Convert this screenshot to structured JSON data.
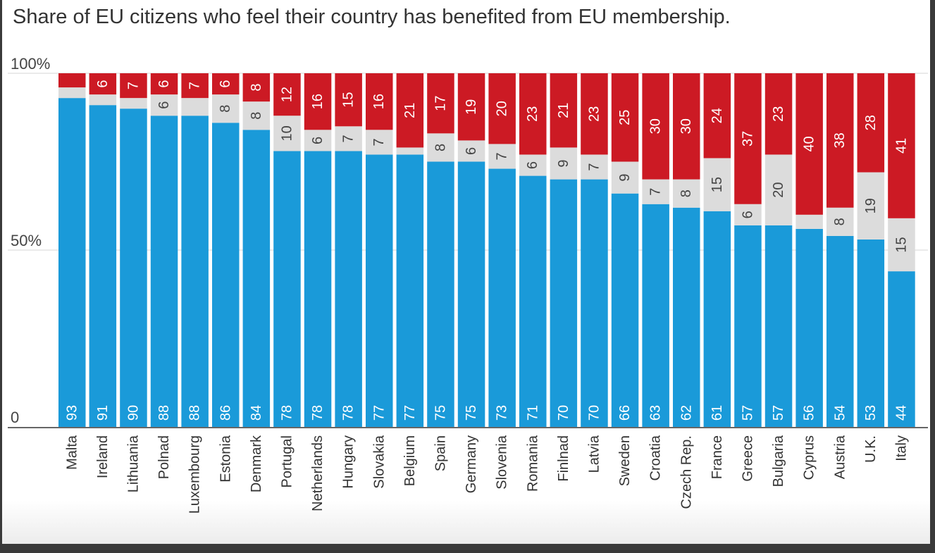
{
  "chart_data": {
    "type": "bar",
    "stacked": true,
    "title": "Share of EU citizens who feel their country has benefited from EU membership.",
    "ylim": [
      0,
      100
    ],
    "yticks": [
      {
        "value": 0,
        "label": "0"
      },
      {
        "value": 50,
        "label": "50%"
      },
      {
        "value": 100,
        "label": "100%"
      }
    ],
    "grid": true,
    "categories": [
      "Malta",
      "Ireland",
      "Lithuania",
      "Polnad",
      "Luxembourg",
      "Estonia",
      "Denmark",
      "Portugal",
      "Netherlands",
      "Hungary",
      "Slovakia",
      "Belgium",
      "Spain",
      "Germany",
      "Slovenia",
      "Romania",
      "Finlnad",
      "Latvia",
      "Sweden",
      "Croatia",
      "Czech Rep.",
      "France",
      "Greece",
      "Bulgaria",
      "Cyprus",
      "Austria",
      "U.K.",
      "Italy"
    ],
    "series": [
      {
        "color": "#1a9ad9",
        "values": [
          93,
          91,
          90,
          88,
          88,
          86,
          84,
          78,
          78,
          78,
          77,
          77,
          75,
          75,
          73,
          71,
          70,
          70,
          66,
          63,
          62,
          61,
          57,
          57,
          56,
          54,
          53,
          44
        ],
        "labels": [
          "93",
          "91",
          "90",
          "88",
          "88",
          "86",
          "84",
          "78",
          "78",
          "78",
          "77",
          "77",
          "75",
          "75",
          "73",
          "71",
          "70",
          "70",
          "66",
          "63",
          "62",
          "61",
          "57",
          "57",
          "56",
          "54",
          "53",
          "44"
        ]
      },
      {
        "color": "#dcdcdc",
        "values": [
          3,
          3,
          3,
          6,
          5,
          8,
          8,
          10,
          6,
          7,
          7,
          2,
          8,
          6,
          7,
          6,
          9,
          7,
          9,
          7,
          8,
          15,
          6,
          20,
          4,
          8,
          19,
          15
        ],
        "labels": [
          "",
          "",
          "",
          "6",
          "",
          "8",
          "8",
          "10",
          "6",
          "7",
          "7",
          "",
          "8",
          "6",
          "7",
          "6",
          "9",
          "7",
          "9",
          "7",
          "8",
          "15",
          "6",
          "20",
          "",
          "8",
          "19",
          "15"
        ]
      },
      {
        "color": "#cc1a24",
        "values": [
          4,
          6,
          7,
          6,
          7,
          6,
          8,
          12,
          16,
          15,
          16,
          21,
          17,
          19,
          20,
          23,
          21,
          23,
          25,
          30,
          30,
          24,
          37,
          23,
          40,
          38,
          28,
          41
        ],
        "labels": [
          "",
          "6",
          "7",
          "6",
          "7",
          "6",
          "8",
          "12",
          "16",
          "15",
          "16",
          "21",
          "17",
          "19",
          "20",
          "23",
          "21",
          "23",
          "25",
          "30",
          "30",
          "24",
          "37",
          "23",
          "40",
          "38",
          "28",
          "41"
        ]
      }
    ]
  }
}
